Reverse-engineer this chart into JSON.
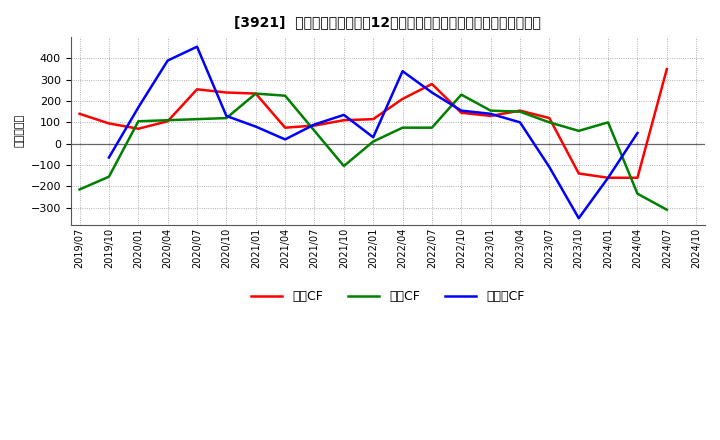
{
  "title": "[3921]  キャッシュフローの12か月移動合計の対前年同期増減額の推移",
  "ylabel": "（百万円）",
  "background_color": "#ffffff",
  "plot_bg_color": "#ffffff",
  "ylim": [
    -380,
    500
  ],
  "yticks": [
    -300,
    -200,
    -100,
    0,
    100,
    200,
    300,
    400
  ],
  "x_labels": [
    "2019/07",
    "2019/10",
    "2020/01",
    "2020/04",
    "2020/07",
    "2020/10",
    "2021/01",
    "2021/04",
    "2021/07",
    "2021/10",
    "2022/01",
    "2022/04",
    "2022/07",
    "2022/10",
    "2023/01",
    "2023/04",
    "2023/07",
    "2023/10",
    "2024/01",
    "2024/04",
    "2024/07",
    "2024/10"
  ],
  "operating_cf": {
    "label": "営業CF",
    "color": "#ff0000",
    "y": [
      140,
      95,
      70,
      105,
      255,
      240,
      235,
      75,
      85,
      110,
      115,
      210,
      280,
      145,
      130,
      155,
      120,
      -140,
      -160,
      -160,
      350,
      null
    ]
  },
  "investing_cf": {
    "label": "投資CF",
    "color": "#008000",
    "y": [
      -215,
      -155,
      105,
      110,
      115,
      120,
      235,
      225,
      60,
      -105,
      10,
      75,
      75,
      230,
      155,
      150,
      100,
      60,
      100,
      -235,
      -310,
      null
    ]
  },
  "free_cf": {
    "label": "フリーCF",
    "color": "#0000ff",
    "y": [
      -65,
      170,
      390,
      455,
      130,
      80,
      20,
      90,
      135,
      30,
      340,
      240,
      155,
      140,
      100,
      -110,
      -350,
      -160,
      50,
      null,
      null,
      null
    ]
  },
  "line_width": 1.8
}
